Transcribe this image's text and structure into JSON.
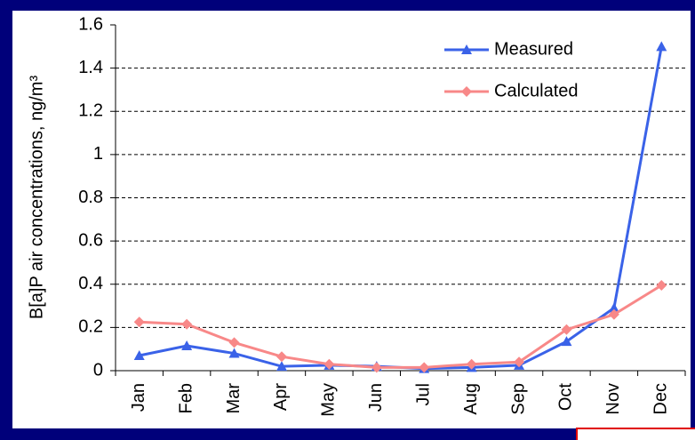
{
  "chart_data": {
    "type": "line",
    "y_label": "B[a]P air concentrations, ng/m³",
    "categories": [
      "Jan",
      "Feb",
      "Mar",
      "Apr",
      "May",
      "Jun",
      "Jul",
      "Aug",
      "Sep",
      "Oct",
      "Nov",
      "Dec"
    ],
    "series": [
      {
        "name": "Measured",
        "color": "#3a62e8",
        "marker": "triangle",
        "values": [
          0.07,
          0.115,
          0.08,
          0.02,
          0.025,
          0.02,
          0.01,
          0.015,
          0.025,
          0.135,
          0.29,
          1.5
        ]
      },
      {
        "name": "Calculated",
        "color": "#f88888",
        "marker": "diamond",
        "values": [
          0.225,
          0.215,
          0.13,
          0.065,
          0.03,
          0.015,
          0.015,
          0.03,
          0.04,
          0.19,
          0.26,
          0.395
        ]
      }
    ],
    "ylim": [
      0,
      1.6
    ],
    "yticks": [
      0,
      0.2,
      0.4,
      0.6,
      0.8,
      1,
      1.2,
      1.4,
      1.6
    ],
    "grid": true,
    "legend": "top-right"
  }
}
